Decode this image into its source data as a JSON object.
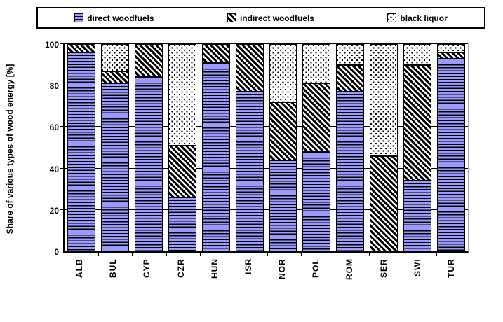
{
  "chart_data": {
    "type": "bar",
    "stacked": true,
    "title": "",
    "xlabel": "",
    "ylabel": "Share of various types of wood energy [%]",
    "ylim": [
      0,
      100
    ],
    "yticks": [
      0,
      20,
      40,
      60,
      80,
      100
    ],
    "grid": true,
    "legend_position": "top",
    "categories": [
      "ALB",
      "BUL",
      "CYP",
      "CZR",
      "HUN",
      "ISR",
      "NOR",
      "POL",
      "ROM",
      "SER",
      "SWI",
      "TUR"
    ],
    "series": [
      {
        "name": "direct woodfuels",
        "pattern": "horizontal-stripes-on-blue",
        "color": "#9A9AFF",
        "values": [
          96,
          81,
          84,
          26,
          91,
          77,
          44,
          48,
          77,
          0,
          34,
          93
        ]
      },
      {
        "name": "indirect woodfuels",
        "pattern": "black-diagonal-hatch",
        "color": "#FFFFFF",
        "values": [
          4,
          6,
          16,
          25,
          9,
          23,
          28,
          33,
          13,
          46,
          56,
          3
        ]
      },
      {
        "name": "black liquor",
        "pattern": "black-dots-on-white",
        "color": "#FFFFFF",
        "values": [
          0,
          13,
          0,
          49,
          0,
          0,
          28,
          19,
          10,
          54,
          10,
          4
        ]
      }
    ],
    "colors": {
      "bar_blue": "#9A9AFF",
      "pattern_ink": "#000000",
      "gridline": "#000000",
      "plot_border_gray": "#ABABAB"
    }
  }
}
